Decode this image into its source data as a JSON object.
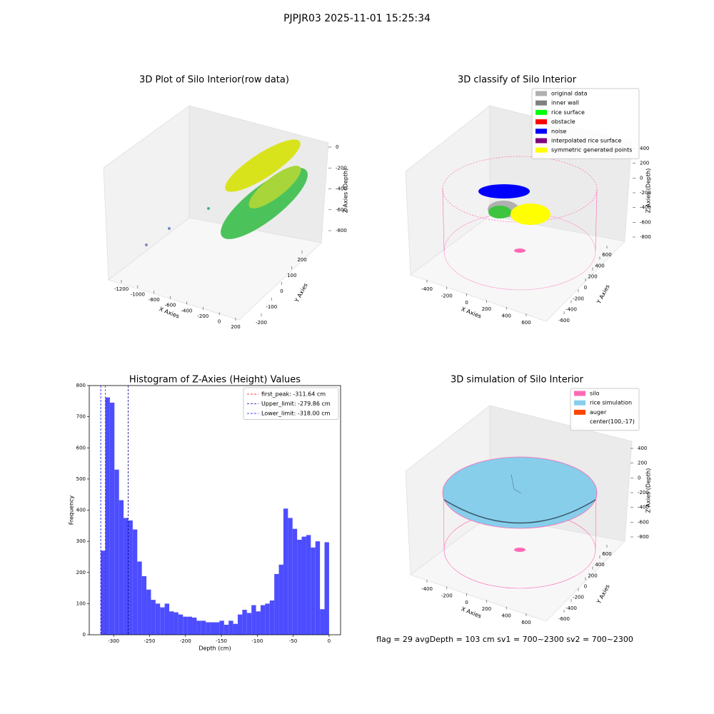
{
  "title": "PJPJR03 2025-11-01 15:25:34",
  "footer": "flag = 29  avgDepth = 103 cm  sv1 = 700~2300  sv2 = 700~2300",
  "chart_data": [
    {
      "type": "scatter3d",
      "title": "3D Plot of Silo Interior(row data)",
      "xlabel": "X Axies",
      "ylabel": "Y Axies",
      "zlabel": "Z Axies (Depth)",
      "xticks": [
        -1200,
        -1000,
        -800,
        -600,
        -400,
        -200,
        0,
        200
      ],
      "yticks": [
        -200,
        -100,
        0,
        100,
        200
      ],
      "zticks": [
        0,
        -200,
        -400,
        -600,
        -800
      ]
    },
    {
      "type": "scatter3d",
      "title": "3D classify of Silo Interior",
      "xlabel": "X Axies",
      "ylabel": "Y Axies",
      "zlabel": "Z Axies (Depth)",
      "xticks": [
        -400,
        -200,
        0,
        200,
        400,
        600
      ],
      "yticks": [
        -600,
        -400,
        -200,
        0,
        200,
        400,
        600
      ],
      "zticks": [
        400,
        200,
        0,
        -200,
        -400,
        -600,
        -800
      ],
      "legend": [
        {
          "name": "original data",
          "color": "#b0b0b0"
        },
        {
          "name": "inner wall",
          "color": "#808080"
        },
        {
          "name": "rice surface",
          "color": "#00ff00"
        },
        {
          "name": "obstacle",
          "color": "#ff0000"
        },
        {
          "name": "noise",
          "color": "#0000ff"
        },
        {
          "name": "interpolated rice surface",
          "color": "#800080"
        },
        {
          "name": "symmetric generated points",
          "color": "#ffff00"
        }
      ]
    },
    {
      "type": "histogram",
      "title": "Histogram of Z-Axies (Height) Values",
      "xlabel": "Depth (cm)",
      "ylabel": "Frequency",
      "color": "#4d4dff",
      "bins": [
        -318,
        -311.64,
        -305.28,
        -298.92,
        -292.56,
        -286.2,
        -279.84,
        -273.48,
        -267.12,
        -260.76,
        -254.4,
        -248.04,
        -241.68,
        -235.32,
        -228.96,
        -222.6,
        -216.24,
        -209.88,
        -203.52,
        -197.16,
        -190.8,
        -184.44,
        -178.08,
        -171.72,
        -165.36,
        -159,
        -152.64,
        -146.28,
        -139.92,
        -133.56,
        -127.2,
        -120.84,
        -114.48,
        -108.12,
        -101.76,
        -95.4,
        -89.04,
        -82.68,
        -76.32,
        -69.96,
        -63.6,
        -57.24,
        -50.88,
        -44.52,
        -38.16,
        -31.8,
        -25.44,
        -19.08,
        -12.72,
        -6.36,
        0
      ],
      "values": [
        270,
        762,
        745,
        530,
        432,
        375,
        367,
        338,
        235,
        188,
        145,
        112,
        100,
        88,
        100,
        75,
        72,
        65,
        58,
        58,
        55,
        45,
        45,
        40,
        40,
        40,
        45,
        32,
        45,
        35,
        65,
        80,
        70,
        95,
        75,
        95,
        100,
        110,
        195,
        225,
        405,
        375,
        340,
        305,
        315,
        320,
        280,
        300,
        82,
        297
      ],
      "xlim": [
        -334,
        16
      ],
      "ylim": [
        0,
        800
      ],
      "xticks": [
        -300,
        -250,
        -200,
        -150,
        -100,
        -50,
        0
      ],
      "yticks": [
        0,
        100,
        200,
        300,
        400,
        500,
        600,
        700,
        800
      ],
      "vlines": [
        {
          "value": -311.64,
          "label": "first_peak: -311.64 cm",
          "color": "#ff0000"
        },
        {
          "value": -279.86,
          "label": "Upper_limit: -279.86 cm",
          "color": "#00008b"
        },
        {
          "value": -318.0,
          "label": "Lower_limit: -318.00 cm",
          "color": "#0000ff"
        }
      ],
      "legend_loc": "upper right"
    },
    {
      "type": "surface3d",
      "title": "3D simulation of Silo Interior",
      "xlabel": "X Axies",
      "ylabel": "Y Axies",
      "zlabel": "Z Axies (Depth)",
      "xticks": [
        -400,
        -200,
        0,
        200,
        400,
        600
      ],
      "yticks": [
        -600,
        -400,
        -200,
        0,
        200,
        400,
        600
      ],
      "zticks": [
        400,
        200,
        0,
        -200,
        -400,
        -600,
        -800
      ],
      "legend": [
        {
          "name": "silo",
          "color": "#ff69b4"
        },
        {
          "name": "rice simulation",
          "color": "#87ceeb"
        },
        {
          "name": "auger",
          "color": "#ff4500"
        },
        {
          "name": "center(100,-17)",
          "color": "#ffffff"
        }
      ]
    }
  ]
}
